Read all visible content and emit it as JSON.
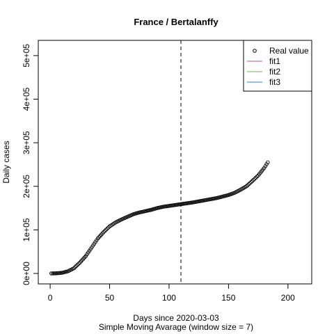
{
  "chart_data": {
    "type": "scatter",
    "title": "France / Bertalanffy",
    "x_label": "Days since 2020-03-03",
    "subtitle": "Simple Moving Avarage (window size = 7)",
    "y_label": "Daily cases",
    "xlim": [
      -10,
      220
    ],
    "xticks": [
      0,
      50,
      100,
      150,
      200
    ],
    "ylim": [
      -24000,
      535000
    ],
    "yticks": [
      {
        "value": 0,
        "label": "0e+00"
      },
      {
        "value": 100000,
        "label": "1e+05"
      },
      {
        "value": 200000,
        "label": "2e+05"
      },
      {
        "value": 300000,
        "label": "3e+05"
      },
      {
        "value": 400000,
        "label": "4e+05"
      },
      {
        "value": 500000,
        "label": "5e+05"
      }
    ],
    "vline": 110,
    "legend_position": "top-right",
    "legend": [
      {
        "label": "Real value",
        "color": "#000000",
        "kind": "point"
      },
      {
        "label": "fit1",
        "color": "#b0508f",
        "kind": "line"
      },
      {
        "label": "fit2",
        "color": "#5cbf3c",
        "kind": "line"
      },
      {
        "label": "fit3",
        "color": "#3a78d0",
        "kind": "line"
      }
    ],
    "series": [
      {
        "name": "Real value",
        "color": "#000000",
        "x": [
          1,
          2,
          3,
          4,
          5,
          6,
          7,
          8,
          9,
          10,
          11,
          12,
          13,
          14,
          15,
          16,
          17,
          18,
          19,
          20,
          21,
          22,
          23,
          24,
          25,
          26,
          27,
          28,
          29,
          30,
          31,
          32,
          33,
          34,
          35,
          36,
          37,
          38,
          39,
          40,
          41,
          42,
          43,
          44,
          45,
          46,
          47,
          48,
          49,
          50,
          51,
          52,
          53,
          54,
          55,
          56,
          57,
          58,
          59,
          60,
          61,
          62,
          63,
          64,
          65,
          66,
          67,
          68,
          69,
          70,
          71,
          72,
          73,
          74,
          75,
          76,
          77,
          78,
          79,
          80,
          81,
          82,
          83,
          84,
          85,
          86,
          87,
          88,
          89,
          90,
          91,
          92,
          93,
          94,
          95,
          96,
          97,
          98,
          99,
          100,
          101,
          102,
          103,
          104,
          105,
          106,
          107,
          108,
          109,
          110,
          111,
          112,
          113,
          114,
          115,
          116,
          117,
          118,
          119,
          120,
          121,
          122,
          123,
          124,
          125,
          126,
          127,
          128,
          129,
          130,
          131,
          132,
          133,
          134,
          135,
          136,
          137,
          138,
          139,
          140,
          141,
          142,
          143,
          144,
          145,
          146,
          147,
          148,
          149,
          150,
          151,
          152,
          153,
          154,
          155,
          156,
          157,
          158,
          159,
          160,
          161,
          162,
          163,
          164,
          165,
          166,
          167,
          168,
          169,
          170,
          171,
          172,
          173,
          174,
          175,
          176,
          177,
          178,
          179,
          180,
          181,
          182,
          183
        ],
        "values": [
          0,
          100,
          150,
          200,
          300,
          500,
          800,
          1000,
          1300,
          1500,
          2200,
          2900,
          3600,
          4300,
          5000,
          6400,
          7800,
          9200,
          10600,
          12000,
          14600,
          17200,
          19800,
          22400,
          25000,
          28000,
          31000,
          34000,
          37000,
          40000,
          44000,
          48000,
          52000,
          56000,
          60000,
          64000,
          68000,
          72000,
          76000,
          80000,
          83000,
          86000,
          89000,
          92000,
          95000,
          97600,
          100200,
          102800,
          105400,
          108000,
          109800,
          111600,
          113400,
          115200,
          117000,
          118400,
          119800,
          121200,
          122600,
          124000,
          125200,
          126400,
          127600,
          128800,
          130000,
          131200,
          132400,
          133600,
          134800,
          136000,
          136800,
          137600,
          138400,
          139200,
          140000,
          140600,
          141200,
          141800,
          142400,
          143000,
          143600,
          144200,
          144800,
          145400,
          146000,
          146800,
          147600,
          148400,
          149200,
          150000,
          150600,
          151200,
          151800,
          152400,
          153000,
          153400,
          153800,
          154200,
          154600,
          155000,
          155400,
          155800,
          156200,
          156600,
          157000,
          157400,
          157800,
          158200,
          158600,
          159000,
          159400,
          159800,
          160200,
          160600,
          161000,
          161400,
          161800,
          162200,
          162600,
          163000,
          163500,
          164000,
          164500,
          165000,
          165500,
          166000,
          166500,
          167000,
          167500,
          168000,
          168500,
          169000,
          169500,
          170000,
          170500,
          171000,
          171500,
          172000,
          172500,
          173000,
          173700,
          174400,
          175100,
          175800,
          176500,
          177200,
          177900,
          178600,
          179300,
          180000,
          181000,
          182000,
          183000,
          184000,
          185000,
          186400,
          187800,
          189200,
          190600,
          192000,
          193600,
          195200,
          196800,
          198400,
          200000,
          202400,
          204800,
          207200,
          209600,
          212000,
          214600,
          217200,
          219800,
          222400,
          225000,
          228400,
          231800,
          235200,
          238600,
          242000,
          246300,
          250700,
          255000
        ]
      }
    ]
  }
}
